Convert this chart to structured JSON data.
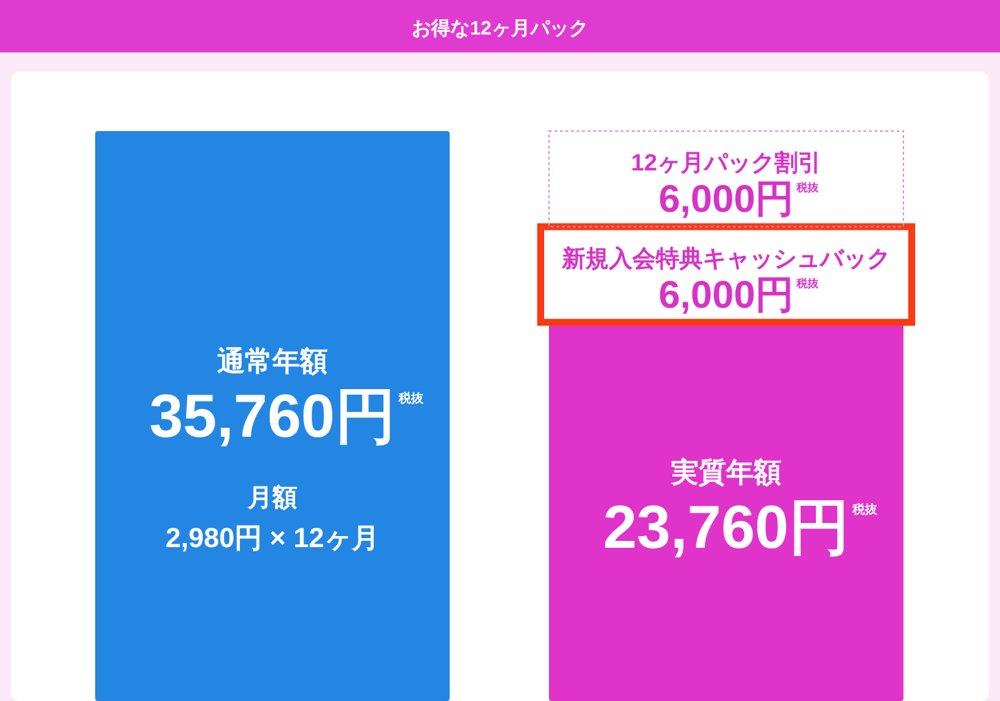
{
  "chart_data": {
    "type": "bar",
    "stacked": true,
    "title": "お得な12ヶ月パック",
    "categories": [
      "通常年額",
      "実質年額"
    ],
    "series": [
      {
        "colors": [
          "#2386e2",
          "#df33c9"
        ],
        "values": [
          35760,
          23760
        ],
        "value_labels": [
          "35,760円",
          "23,760円"
        ]
      },
      {
        "name": "新規入会特典キャッシュバック",
        "color": "#fa3a12",
        "values": [
          null,
          6000
        ],
        "value_labels": [
          null,
          "6,000円"
        ]
      },
      {
        "name": "12ヶ月パック割引",
        "color": "#e58ad9",
        "values": [
          null,
          6000
        ],
        "value_labels": [
          null,
          "6,000円"
        ]
      }
    ],
    "annotations": [
      "税抜",
      "月額",
      "2,980円 × 12ヶ月"
    ]
  }
}
